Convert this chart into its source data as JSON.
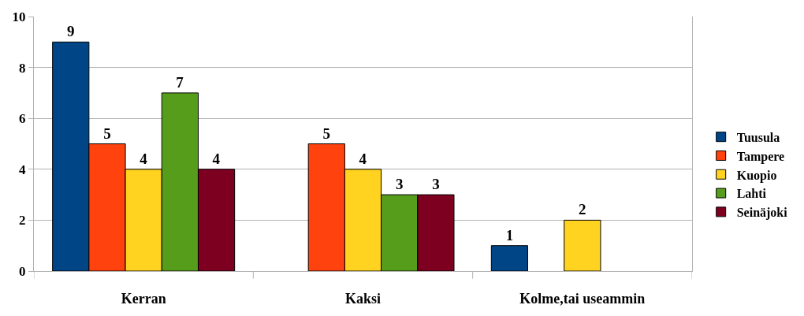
{
  "chart_data": {
    "type": "bar",
    "categories": [
      "Kerran",
      "Kaksi",
      "Kolme,tai useammin"
    ],
    "series": [
      {
        "name": "Tuusula",
        "color": "#004586",
        "values": [
          9,
          null,
          1
        ]
      },
      {
        "name": "Tampere",
        "color": "#ff420e",
        "values": [
          5,
          5,
          null
        ]
      },
      {
        "name": "Kuopio",
        "color": "#ffd320",
        "values": [
          4,
          4,
          2
        ]
      },
      {
        "name": "Lahti",
        "color": "#579d1c",
        "values": [
          7,
          3,
          null
        ]
      },
      {
        "name": "Seinäjoki",
        "color": "#7e0021",
        "values": [
          4,
          3,
          null
        ]
      }
    ],
    "ylim": [
      0,
      10
    ],
    "yticks": [
      0,
      2,
      4,
      6,
      8,
      10
    ],
    "grid": "y",
    "legend": "right",
    "data_labels": true
  }
}
